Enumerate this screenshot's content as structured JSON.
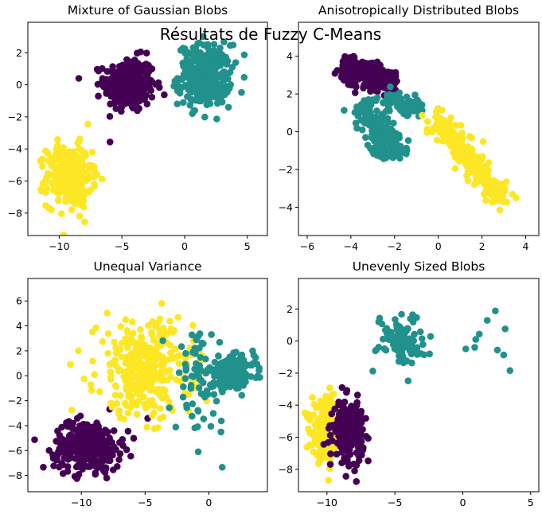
{
  "suptitle": "Résultats de Fuzzy C-Means",
  "colors": {
    "purple": "#440154",
    "teal": "#21918c",
    "yellow": "#fde725"
  },
  "chart_data": [
    {
      "type": "scatter",
      "title": "Mixture of Gaussian Blobs",
      "xlim": [
        -12.5,
        6.6
      ],
      "ylim": [
        -9.4,
        3.9
      ],
      "xticks": [
        -10,
        -5,
        0,
        5
      ],
      "yticks": [
        2,
        0,
        -2,
        -4,
        -6,
        -8
      ],
      "clusters": [
        {
          "color": "purple",
          "cx": -4.4,
          "cy": 0.0,
          "sx": 1.0,
          "sy": 0.85,
          "n": 300
        },
        {
          "color": "teal",
          "cx": 1.6,
          "cy": 0.6,
          "sx": 1.05,
          "sy": 0.95,
          "n": 300
        },
        {
          "color": "yellow",
          "cx": -9.2,
          "cy": -5.7,
          "sx": 0.9,
          "sy": 0.95,
          "n": 300
        }
      ]
    },
    {
      "type": "scatter",
      "title": "Anisotropically Distributed Blobs",
      "xlim": [
        -6.4,
        4.6
      ],
      "ylim": [
        -5.5,
        5.8
      ],
      "xticks": [
        -6,
        -4,
        -2,
        0,
        2,
        4
      ],
      "yticks": [
        4,
        2,
        0,
        -2,
        -4
      ],
      "clusters": [
        {
          "color": "purple",
          "x0": -4.4,
          "y0": 3.5,
          "x1": -2.0,
          "y1": 2.5,
          "perp": 0.35,
          "n": 280
        },
        {
          "color": "teal",
          "x0": -3.5,
          "y0": 1.6,
          "x1": -2.0,
          "y1": -1.3,
          "perp": 0.35,
          "n": 220
        },
        {
          "color": "teal",
          "x0": -2.4,
          "y0": 2.0,
          "x1": -0.8,
          "y1": 1.0,
          "perp": 0.25,
          "n": 80
        },
        {
          "color": "yellow",
          "x0": -0.2,
          "y0": 0.8,
          "x1": 3.0,
          "y1": -3.6,
          "perp": 0.28,
          "n": 300
        }
      ]
    },
    {
      "type": "scatter",
      "title": "Unequal Variance",
      "xlim": [
        -14.2,
        4.6
      ],
      "ylim": [
        -9.3,
        7.8
      ],
      "xticks": [
        -10,
        -5,
        0
      ],
      "yticks": [
        6,
        4,
        2,
        0,
        -2,
        -4,
        -6,
        -8
      ],
      "clusters": [
        {
          "color": "purple",
          "cx": -9.5,
          "cy": -5.6,
          "sx": 1.3,
          "sy": 1.0,
          "n": 330
        },
        {
          "color": "yellow",
          "cx": -5.0,
          "cy": 0.5,
          "sx": 1.9,
          "sy": 1.9,
          "n": 320
        },
        {
          "color": "teal",
          "cx": 1.8,
          "cy": 0.3,
          "sx": 0.9,
          "sy": 0.6,
          "n": 200
        },
        {
          "color": "teal",
          "cx": -0.6,
          "cy": -0.5,
          "sx": 1.0,
          "sy": 2.0,
          "n": 80
        }
      ]
    },
    {
      "type": "scatter",
      "title": "Unevenly Sized Blobs",
      "xlim": [
        -12.1,
        5.6
      ],
      "ylim": [
        -9.4,
        3.9
      ],
      "xticks": [
        -10,
        -5,
        0,
        5
      ],
      "yticks": [
        2,
        0,
        -2,
        -4,
        -6,
        -8
      ],
      "clusters": [
        {
          "color": "yellow",
          "cx": -10.0,
          "cy": -5.6,
          "sx": 0.55,
          "sy": 0.9,
          "n": 260
        },
        {
          "color": "purple",
          "cx": -8.4,
          "cy": -5.6,
          "sx": 0.55,
          "sy": 0.9,
          "n": 220
        },
        {
          "color": "teal",
          "cx": -4.6,
          "cy": 0.1,
          "sx": 0.85,
          "sy": 0.8,
          "n": 100
        },
        {
          "color": "teal",
          "cx": 2.3,
          "cy": 0.3,
          "sx": 1.0,
          "sy": 1.1,
          "n": 10
        }
      ]
    }
  ]
}
